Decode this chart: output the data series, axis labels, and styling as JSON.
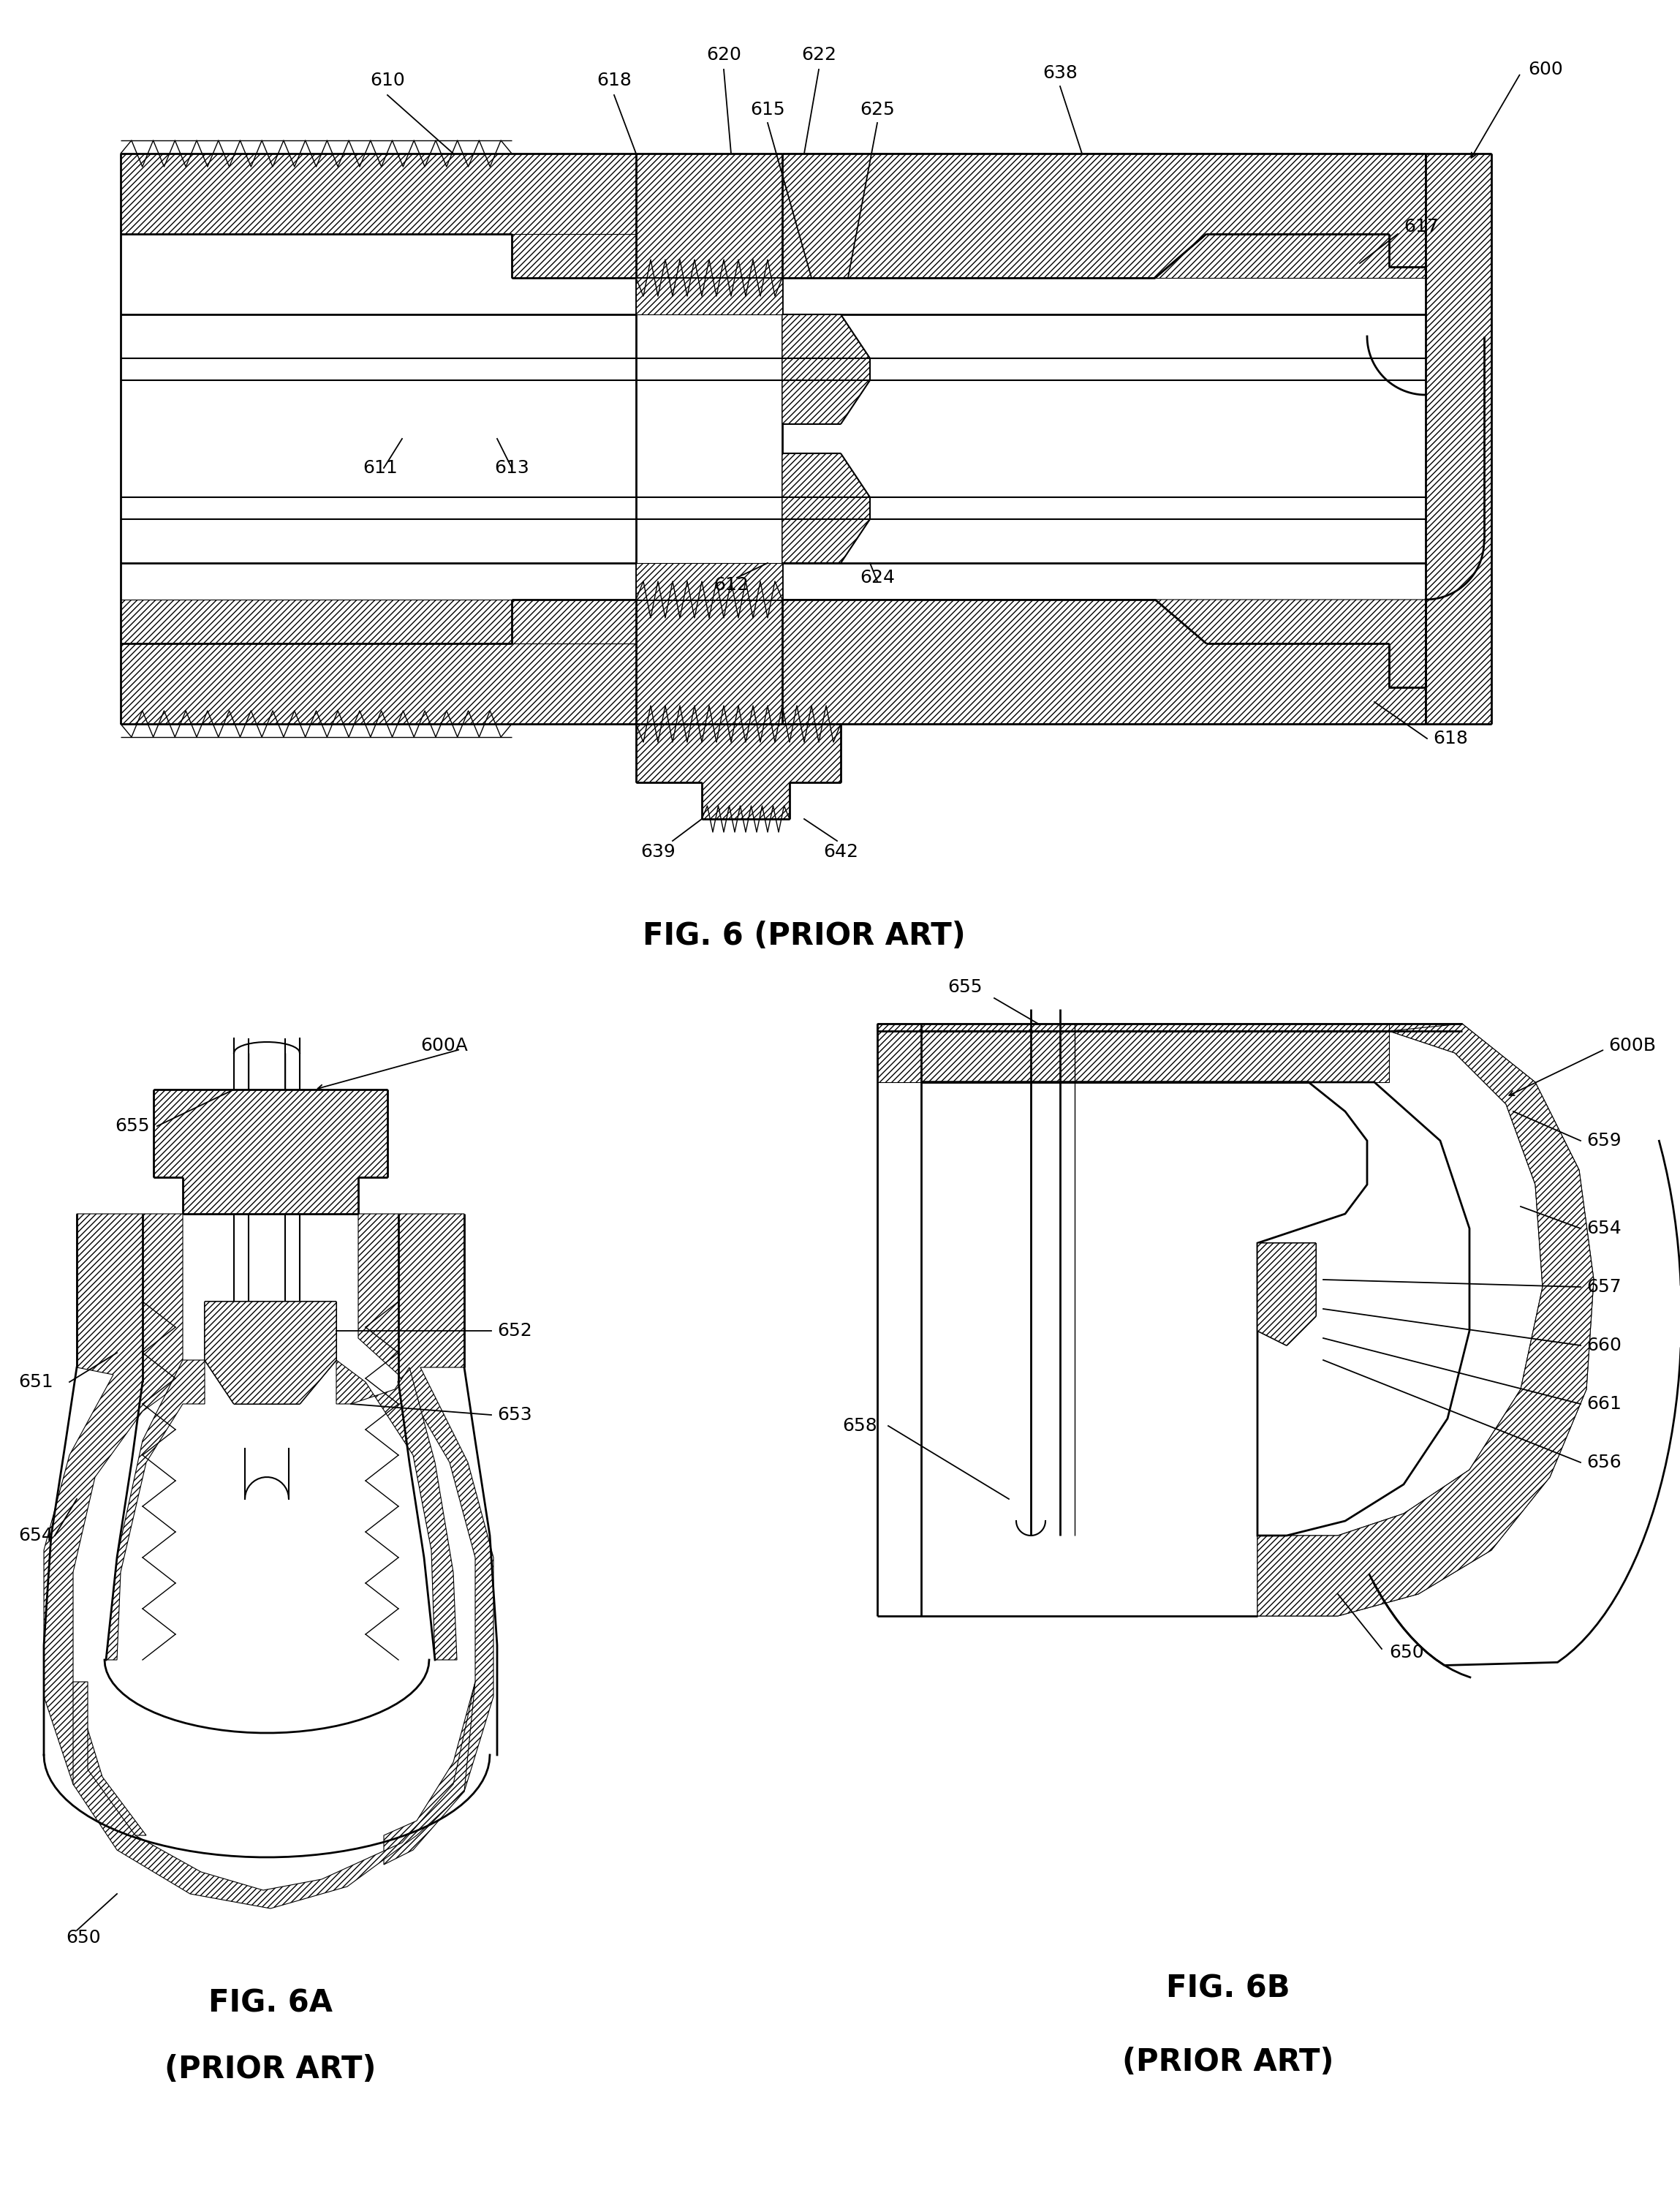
{
  "bg_color": "#ffffff",
  "fig6_title": "FIG. 6 (PRIOR ART)",
  "fig6a_title_line1": "FIG. 6A",
  "fig6a_title_line2": "(PRIOR ART)",
  "fig6b_title_line1": "FIG. 6B",
  "fig6b_title_line2": "(PRIOR ART)",
  "label_fontsize": 18,
  "title_fontsize": 30
}
